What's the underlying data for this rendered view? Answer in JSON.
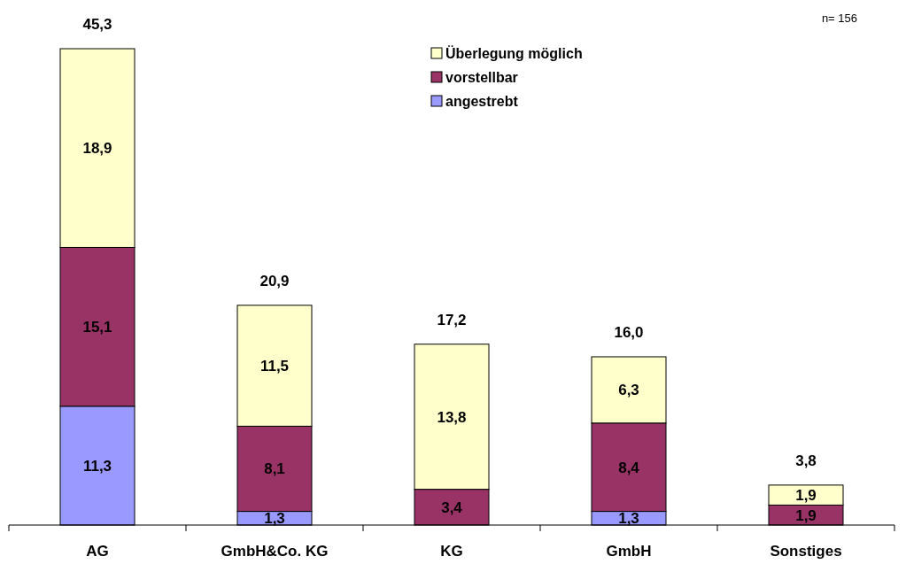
{
  "chart_data": {
    "type": "bar",
    "stacked": true,
    "categories": [
      "AG",
      "GmbH&Co. KG",
      "KG",
      "GmbH",
      "Sonstiges"
    ],
    "series": [
      {
        "name": "angestrebt",
        "color": "#9999ff",
        "values": [
          11.3,
          1.3,
          null,
          1.3,
          null
        ],
        "value_labels": [
          "11,3",
          "1,3",
          null,
          "1,3",
          null
        ]
      },
      {
        "name": "vorstellbar",
        "color": "#993366",
        "values": [
          15.1,
          8.1,
          3.4,
          8.4,
          1.9
        ],
        "value_labels": [
          "15,1",
          "8,1",
          "3,4",
          "8,4",
          "1,9"
        ]
      },
      {
        "name": "Überlegung möglich",
        "color": "#ffffcc",
        "values": [
          18.9,
          11.5,
          13.8,
          6.3,
          1.9
        ],
        "value_labels": [
          "18,9",
          "11,5",
          "13,8",
          "6,3",
          "1,9"
        ]
      }
    ],
    "totals": [
      "45,3",
      "20,9",
      "17,2",
      "16,0",
      "3,8"
    ],
    "tick_labels": "x",
    "legend": "top right",
    "annotations": [
      "n= 156"
    ]
  }
}
